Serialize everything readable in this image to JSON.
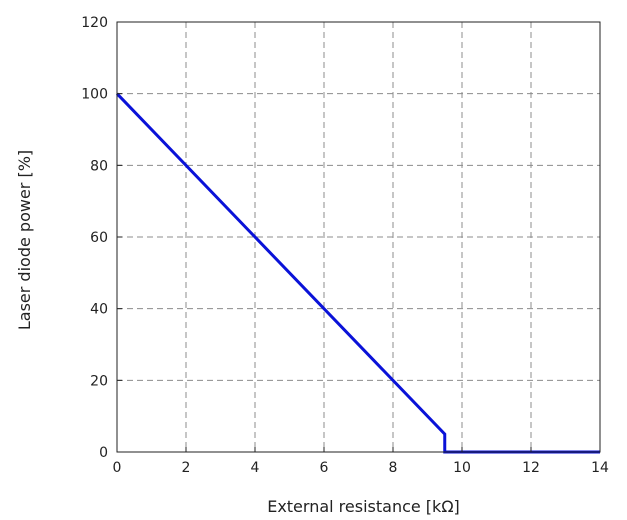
{
  "chart_data": {
    "type": "line",
    "title": "",
    "xlabel": "External resistance [kΩ]",
    "ylabel": "Laser diode power [%]",
    "xlim": [
      0,
      14
    ],
    "ylim": [
      0,
      120
    ],
    "xticks": [
      0,
      2,
      4,
      6,
      8,
      10,
      12,
      14
    ],
    "yticks": [
      0,
      20,
      40,
      60,
      80,
      100,
      120
    ],
    "xtick_labels": [
      "0",
      "2",
      "4",
      "6",
      "8",
      "10",
      "12",
      "14"
    ],
    "ytick_labels": [
      "0",
      "20",
      "40",
      "60",
      "80",
      "100",
      "120"
    ],
    "grid": true,
    "grid_style": "dashed",
    "series": [
      {
        "color": "#0a12d8",
        "x": [
          0,
          9.5,
          9.5,
          14
        ],
        "y": [
          100,
          5,
          0,
          0
        ]
      }
    ]
  }
}
